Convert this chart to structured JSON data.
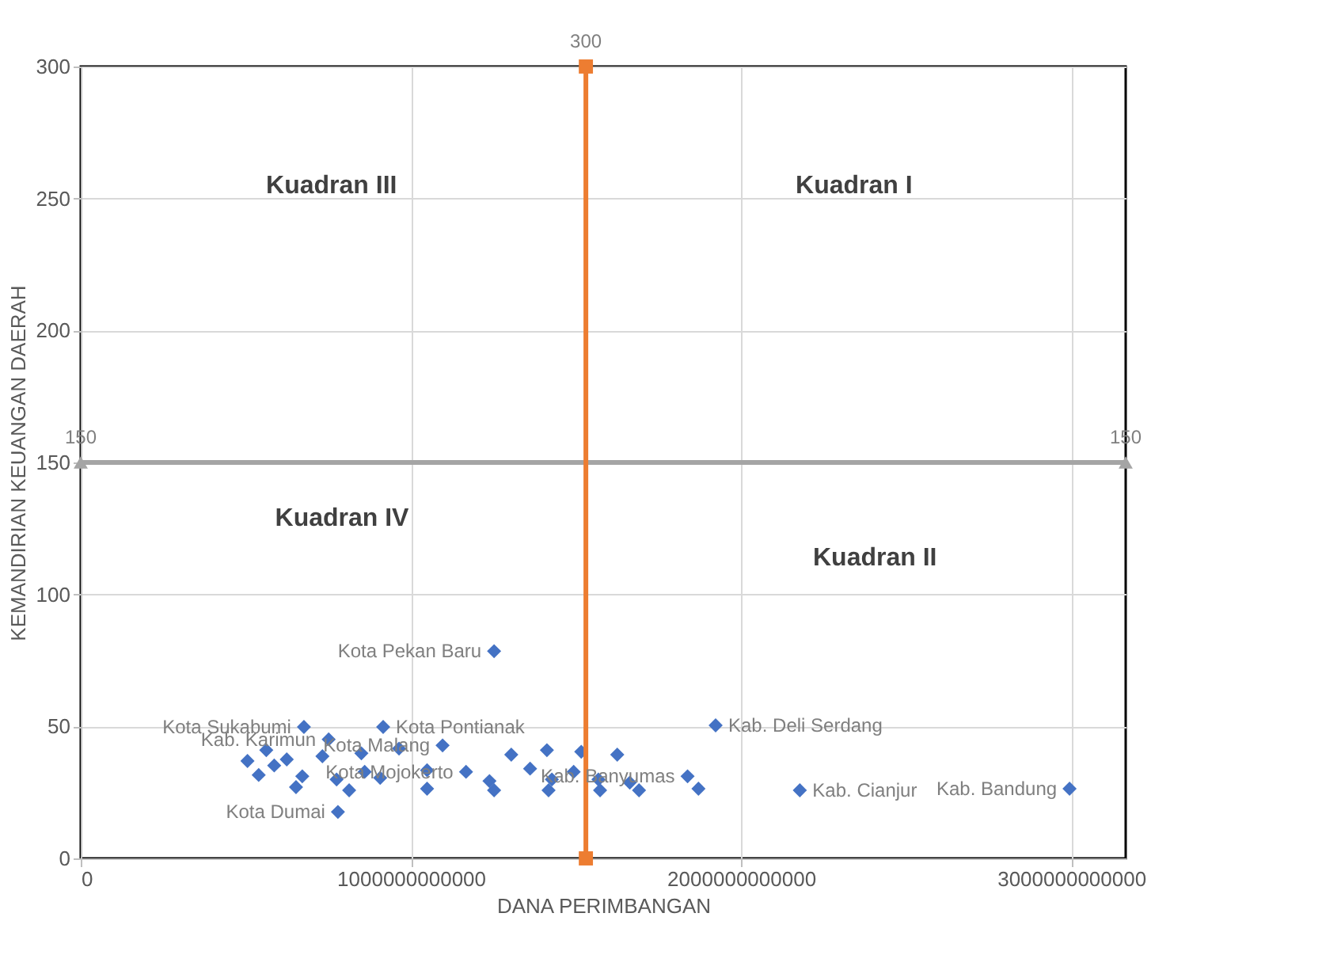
{
  "chart_data": {
    "type": "scatter",
    "xlabel": "DANA PERIMBANGAN",
    "ylabel": "KEMANDIRIAN KEUANGAN DAERAH",
    "xlim": [
      0,
      3165000000000
    ],
    "xticks": [
      0,
      1000000000000,
      2000000000000,
      3000000000000
    ],
    "ylim": [
      0,
      300
    ],
    "yticks": [
      0,
      50,
      100,
      150,
      200,
      250,
      300
    ],
    "grid": true,
    "annotations": [
      "Kuadran III",
      "Kuadran I",
      "Kuadran IV",
      "Kuadran II"
    ],
    "series": [
      {
        "color": "#4472c4",
        "marker": "diamond",
        "x": [
          676000000000,
          916000000000,
          1923000000000,
          751000000000,
          1096000000000,
          562000000000,
          850000000000,
          964000000000,
          1304000000000,
          1412000000000,
          1516000000000,
          1625000000000,
          505000000000,
          624000000000,
          732000000000,
          586000000000,
          860000000000,
          1049000000000,
          1167000000000,
          1361000000000,
          1493000000000,
          539000000000,
          671000000000,
          775000000000,
          907000000000,
          1238000000000,
          1427000000000,
          1568000000000,
          1663000000000,
          1838000000000,
          652000000000,
          813000000000,
          1049000000000,
          1252000000000,
          1417000000000,
          1573000000000,
          1691000000000,
          1871000000000,
          2178000000000,
          2995000000000,
          779000000000,
          1252000000000
        ],
        "values": [
          49.8,
          49.8,
          50.4,
          45.1,
          42.8,
          41.0,
          39.8,
          41.6,
          39.3,
          41.0,
          40.4,
          39.3,
          36.9,
          37.5,
          38.7,
          35.2,
          32.8,
          33.4,
          32.8,
          34.0,
          32.8,
          31.6,
          31.1,
          29.9,
          30.5,
          29.3,
          29.9,
          29.9,
          28.7,
          31.1,
          27.0,
          25.8,
          26.4,
          25.8,
          25.8,
          25.8,
          25.8,
          26.4,
          25.8,
          26.4,
          17.6,
          78.5
        ],
        "value_labels": [
          "Kota Sukabumi",
          "Kota Pontianak",
          "Kab. Deli Serdang",
          "Kab. Karimun",
          "Kota Malang",
          null,
          null,
          null,
          null,
          null,
          null,
          null,
          null,
          null,
          null,
          null,
          null,
          null,
          "Kota Mojokerto",
          null,
          null,
          null,
          null,
          null,
          null,
          null,
          null,
          null,
          null,
          "Kab. Banyumas",
          null,
          null,
          null,
          null,
          null,
          null,
          null,
          null,
          "Kab. Cianjur",
          "Kab. Bandung",
          "Kota Dumai",
          "Kota Pekan Baru"
        ]
      },
      {
        "type": "line",
        "color": "#a5a5a5",
        "marker": "triangle",
        "x": [
          0,
          3165000000000
        ],
        "values": [
          150,
          150
        ],
        "value_labels": [
          "150",
          "150"
        ]
      },
      {
        "type": "line",
        "color": "#ed7d31",
        "marker": "square",
        "x": [
          1530000000000,
          1530000000000
        ],
        "values": [
          0,
          300
        ],
        "value_labels": [
          null,
          "300"
        ]
      }
    ]
  }
}
